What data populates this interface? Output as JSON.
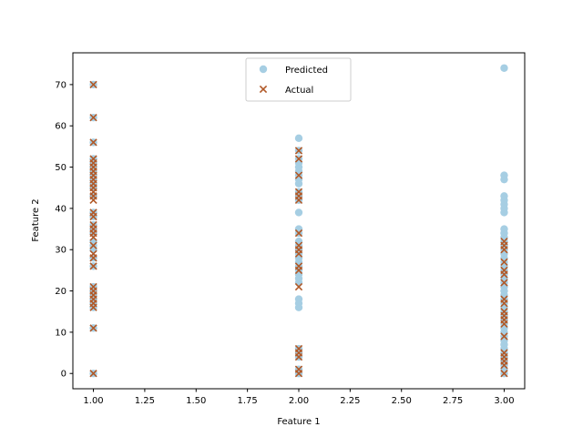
{
  "chart_data": {
    "type": "scatter",
    "title": "",
    "xlabel": "Feature 1",
    "ylabel": "Feature 2",
    "xlim": [
      0.9,
      3.1
    ],
    "ylim": [
      -3.7,
      77.7
    ],
    "xticks": [
      1.0,
      1.25,
      1.5,
      1.75,
      2.0,
      2.25,
      2.5,
      2.75,
      3.0
    ],
    "xtick_labels": [
      "1.00",
      "1.25",
      "1.50",
      "1.75",
      "2.00",
      "2.25",
      "2.50",
      "2.75",
      "3.00"
    ],
    "yticks": [
      0,
      10,
      20,
      30,
      40,
      50,
      60,
      70
    ],
    "ytick_labels": [
      "0",
      "10",
      "20",
      "30",
      "40",
      "50",
      "60",
      "70"
    ],
    "grid": false,
    "legend_position": "top-center",
    "series": [
      {
        "name": "Predicted",
        "marker": "circle",
        "color": "#a6cee3",
        "points": [
          [
            1,
            0
          ],
          [
            1,
            11
          ],
          [
            1,
            16
          ],
          [
            1,
            17
          ],
          [
            1,
            18
          ],
          [
            1,
            19
          ],
          [
            1,
            20
          ],
          [
            1,
            21
          ],
          [
            1,
            26
          ],
          [
            1,
            28
          ],
          [
            1,
            30
          ],
          [
            1,
            31
          ],
          [
            1,
            32
          ],
          [
            1,
            34
          ],
          [
            1,
            35
          ],
          [
            1,
            36
          ],
          [
            1,
            38
          ],
          [
            1,
            39
          ],
          [
            1,
            43
          ],
          [
            1,
            45
          ],
          [
            1,
            46
          ],
          [
            1,
            47
          ],
          [
            1,
            48
          ],
          [
            1,
            49
          ],
          [
            1,
            50
          ],
          [
            1,
            51
          ],
          [
            1,
            52
          ],
          [
            1,
            56
          ],
          [
            1,
            62
          ],
          [
            1,
            70
          ],
          [
            2,
            0
          ],
          [
            2,
            1
          ],
          [
            2,
            4
          ],
          [
            2,
            5
          ],
          [
            2,
            6
          ],
          [
            2,
            16
          ],
          [
            2,
            17
          ],
          [
            2,
            18
          ],
          [
            2,
            22
          ],
          [
            2,
            23
          ],
          [
            2,
            24
          ],
          [
            2,
            25
          ],
          [
            2,
            26
          ],
          [
            2,
            27
          ],
          [
            2,
            28
          ],
          [
            2,
            29
          ],
          [
            2,
            30
          ],
          [
            2,
            31
          ],
          [
            2,
            32
          ],
          [
            2,
            34
          ],
          [
            2,
            35
          ],
          [
            2,
            39
          ],
          [
            2,
            42
          ],
          [
            2,
            43
          ],
          [
            2,
            44
          ],
          [
            2,
            46
          ],
          [
            2,
            47
          ],
          [
            2,
            48
          ],
          [
            2,
            49
          ],
          [
            2,
            50
          ],
          [
            2,
            51
          ],
          [
            2,
            52
          ],
          [
            2,
            54
          ],
          [
            2,
            57
          ],
          [
            3,
            0
          ],
          [
            3,
            1
          ],
          [
            3,
            2
          ],
          [
            3,
            3
          ],
          [
            3,
            4
          ],
          [
            3,
            5
          ],
          [
            3,
            6
          ],
          [
            3,
            7
          ],
          [
            3,
            8
          ],
          [
            3,
            9
          ],
          [
            3,
            10
          ],
          [
            3,
            11
          ],
          [
            3,
            12
          ],
          [
            3,
            13
          ],
          [
            3,
            14
          ],
          [
            3,
            15
          ],
          [
            3,
            16
          ],
          [
            3,
            17
          ],
          [
            3,
            18
          ],
          [
            3,
            19
          ],
          [
            3,
            20
          ],
          [
            3,
            21
          ],
          [
            3,
            22
          ],
          [
            3,
            23
          ],
          [
            3,
            24
          ],
          [
            3,
            25
          ],
          [
            3,
            26
          ],
          [
            3,
            27
          ],
          [
            3,
            28
          ],
          [
            3,
            29
          ],
          [
            3,
            30
          ],
          [
            3,
            31
          ],
          [
            3,
            32
          ],
          [
            3,
            33
          ],
          [
            3,
            34
          ],
          [
            3,
            35
          ],
          [
            3,
            39
          ],
          [
            3,
            40
          ],
          [
            3,
            41
          ],
          [
            3,
            42
          ],
          [
            3,
            43
          ],
          [
            3,
            47
          ],
          [
            3,
            48
          ],
          [
            3,
            74
          ]
        ]
      },
      {
        "name": "Actual",
        "marker": "x",
        "color": "#b15928",
        "points": [
          [
            1,
            0
          ],
          [
            1,
            11
          ],
          [
            1,
            16
          ],
          [
            1,
            17
          ],
          [
            1,
            18
          ],
          [
            1,
            19
          ],
          [
            1,
            20
          ],
          [
            1,
            21
          ],
          [
            1,
            26
          ],
          [
            1,
            28
          ],
          [
            1,
            29
          ],
          [
            1,
            31
          ],
          [
            1,
            33
          ],
          [
            1,
            34
          ],
          [
            1,
            35
          ],
          [
            1,
            36
          ],
          [
            1,
            38
          ],
          [
            1,
            39
          ],
          [
            1,
            42
          ],
          [
            1,
            43
          ],
          [
            1,
            44
          ],
          [
            1,
            45
          ],
          [
            1,
            46
          ],
          [
            1,
            47
          ],
          [
            1,
            48
          ],
          [
            1,
            49
          ],
          [
            1,
            50
          ],
          [
            1,
            51
          ],
          [
            1,
            52
          ],
          [
            1,
            56
          ],
          [
            1,
            62
          ],
          [
            1,
            70
          ],
          [
            2,
            0
          ],
          [
            2,
            1
          ],
          [
            2,
            4
          ],
          [
            2,
            5
          ],
          [
            2,
            6
          ],
          [
            2,
            21
          ],
          [
            2,
            25
          ],
          [
            2,
            26
          ],
          [
            2,
            29
          ],
          [
            2,
            30
          ],
          [
            2,
            31
          ],
          [
            2,
            34
          ],
          [
            2,
            42
          ],
          [
            2,
            43
          ],
          [
            2,
            44
          ],
          [
            2,
            48
          ],
          [
            2,
            52
          ],
          [
            2,
            54
          ],
          [
            3,
            0
          ],
          [
            3,
            2
          ],
          [
            3,
            3
          ],
          [
            3,
            4
          ],
          [
            3,
            5
          ],
          [
            3,
            9
          ],
          [
            3,
            12
          ],
          [
            3,
            13
          ],
          [
            3,
            14
          ],
          [
            3,
            15
          ],
          [
            3,
            17
          ],
          [
            3,
            18
          ],
          [
            3,
            22
          ],
          [
            3,
            24
          ],
          [
            3,
            25
          ],
          [
            3,
            27
          ],
          [
            3,
            30
          ],
          [
            3,
            31
          ],
          [
            3,
            32
          ]
        ]
      }
    ]
  }
}
